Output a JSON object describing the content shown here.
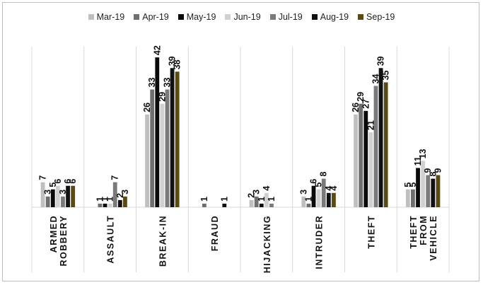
{
  "chart_data": {
    "type": "bar",
    "categories": [
      [
        "ARMED",
        "ROBBERY"
      ],
      [
        "ASSAULT"
      ],
      [
        "BREAK-IN"
      ],
      [
        "FRAUD"
      ],
      [
        "HIJACKING"
      ],
      [
        "INTRUDER"
      ],
      [
        "THEFT"
      ],
      [
        "THEFT",
        "FROM",
        "VEHICLE"
      ]
    ],
    "series": [
      {
        "name": "Mar-19",
        "color": "#bfbfbf",
        "values": [
          7,
          null,
          26,
          null,
          2,
          3,
          26,
          5
        ]
      },
      {
        "name": "Apr-19",
        "color": "#6e6e6e",
        "values": [
          3,
          1,
          33,
          1,
          3,
          1,
          29,
          5
        ]
      },
      {
        "name": "May-19",
        "color": "#0a0a0a",
        "values": [
          5,
          1,
          42,
          null,
          1,
          6,
          27,
          11
        ]
      },
      {
        "name": "Jun-19",
        "color": "#d0d0d0",
        "values": [
          6,
          1,
          29,
          null,
          4,
          5,
          21,
          13
        ]
      },
      {
        "name": "Jul-19",
        "color": "#7a7a7a",
        "values": [
          3,
          7,
          33,
          null,
          1,
          8,
          34,
          9
        ]
      },
      {
        "name": "Aug-19",
        "color": "#111111",
        "values": [
          6,
          2,
          39,
          1,
          null,
          4,
          39,
          8
        ]
      },
      {
        "name": "Sep-19",
        "color": "#5c4a14",
        "values": [
          6,
          3,
          38,
          null,
          null,
          4,
          35,
          9
        ]
      }
    ],
    "ylim": [
      0,
      45
    ],
    "grid": false,
    "legend": "top"
  }
}
